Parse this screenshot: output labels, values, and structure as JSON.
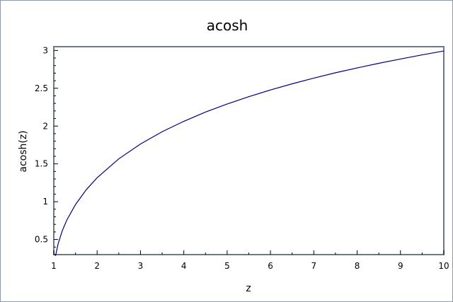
{
  "chart_data": {
    "type": "line",
    "title": "acosh",
    "xlabel": "z",
    "ylabel": "acosh(z)",
    "xlim": [
      1,
      10
    ],
    "ylim": [
      0.3,
      3.05
    ],
    "x_ticks": [
      1,
      2,
      3,
      4,
      5,
      6,
      7,
      8,
      9,
      10
    ],
    "x_tick_labels": [
      "1",
      "2",
      "3",
      "4",
      "5",
      "6",
      "7",
      "8",
      "9",
      "10"
    ],
    "y_ticks": [
      0.5,
      1,
      1.5,
      2,
      2.5,
      3
    ],
    "y_tick_labels": [
      "0.5",
      "1",
      "1.5",
      "2",
      "2.5",
      "3"
    ],
    "grid": false,
    "series": [
      {
        "color": "#00007f",
        "x": [
          1.04,
          1.1,
          1.2,
          1.3,
          1.5,
          1.75,
          2,
          2.5,
          3,
          3.5,
          4,
          4.5,
          5,
          5.5,
          6,
          6.5,
          7,
          7.5,
          8,
          8.5,
          9,
          9.5,
          10
        ],
        "y": [
          0.284,
          0.443,
          0.622,
          0.756,
          0.962,
          1.159,
          1.317,
          1.567,
          1.763,
          1.925,
          2.063,
          2.185,
          2.292,
          2.389,
          2.478,
          2.559,
          2.634,
          2.705,
          2.769,
          2.83,
          2.887,
          2.942,
          2.993
        ]
      }
    ]
  }
}
